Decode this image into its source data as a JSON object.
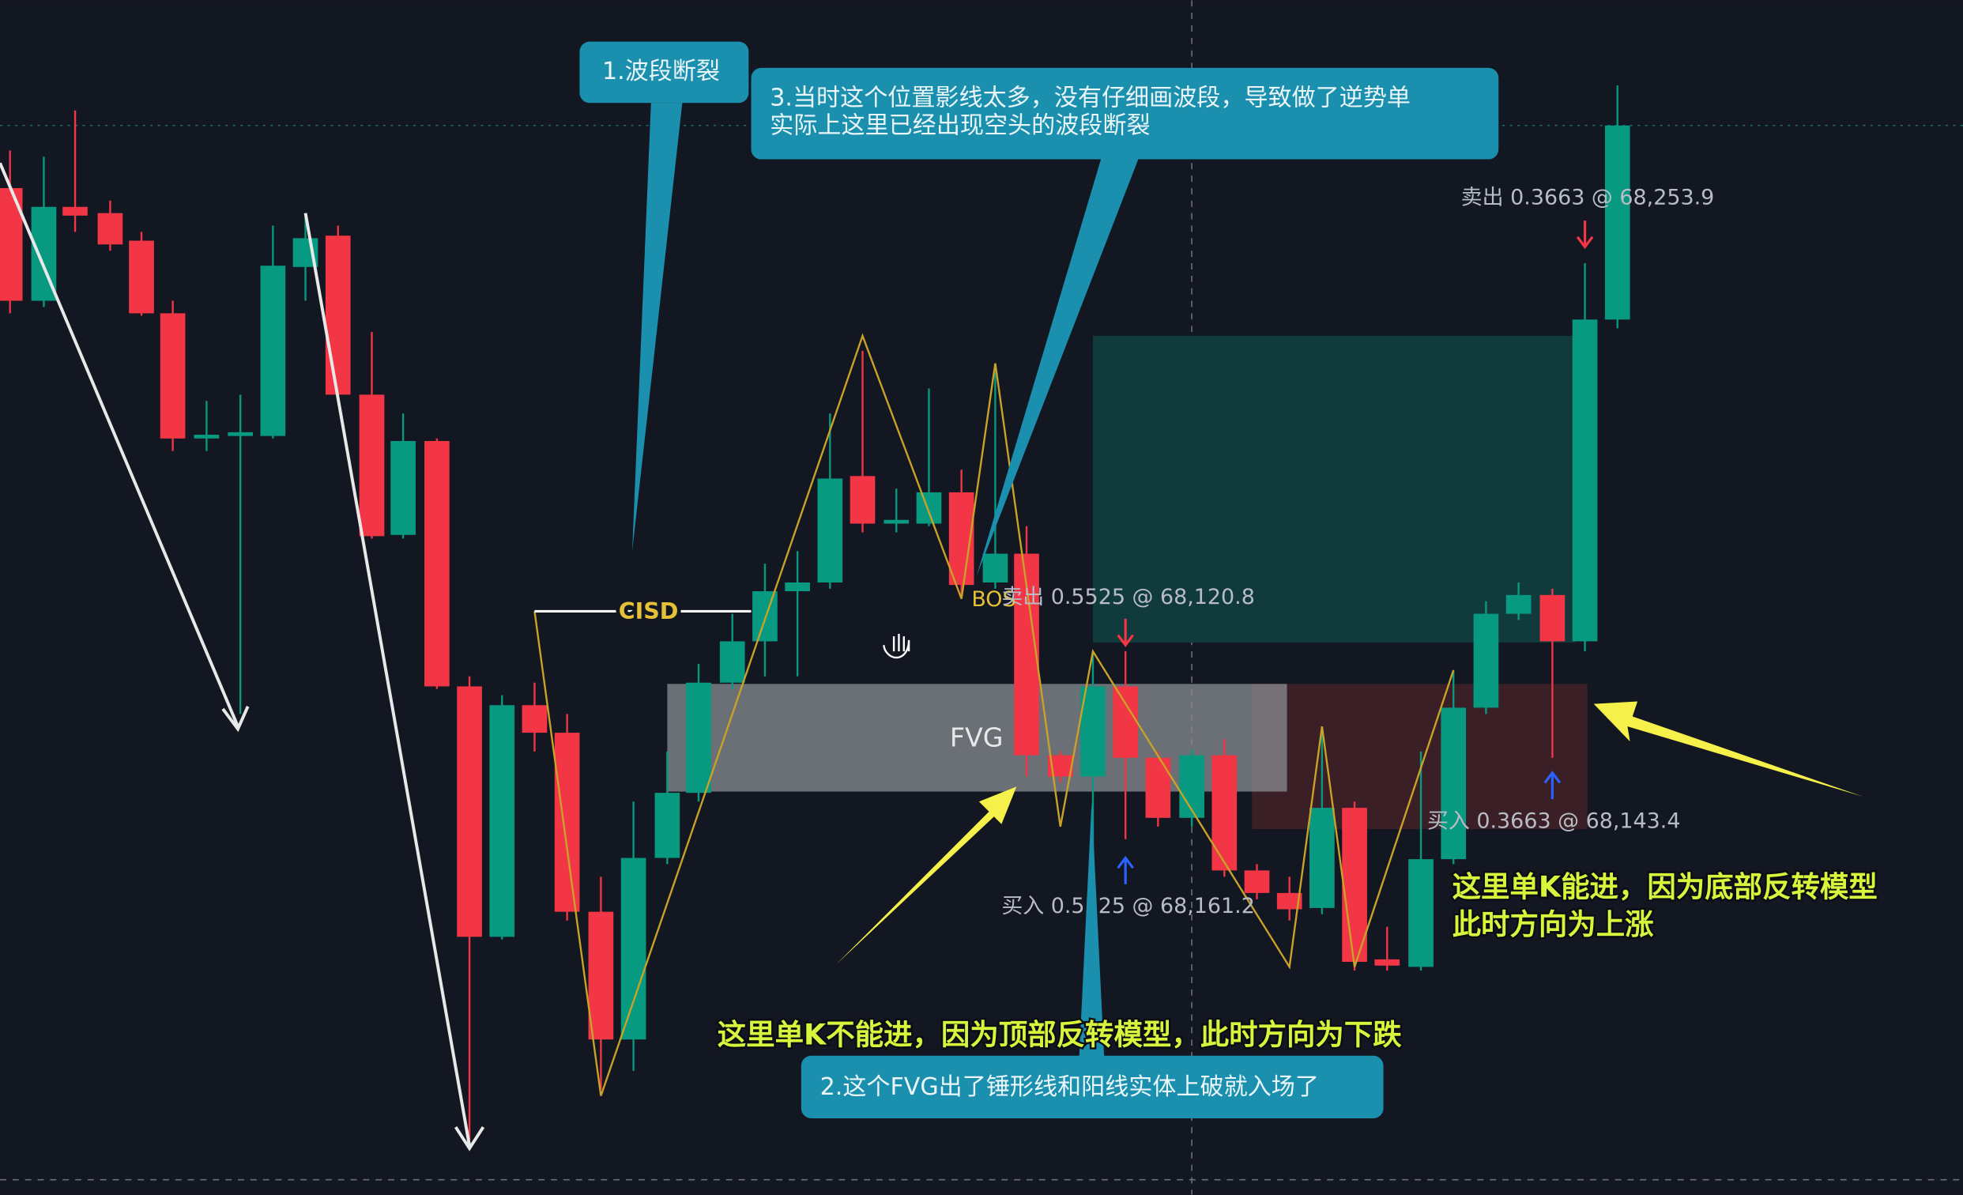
{
  "callouts": {
    "c1": "1.波段断裂",
    "c3": [
      "3.当时这个位置影线太多，没有仔细画波段，导致做了逆势单",
      "实际上这里已经出现空头的波段断裂"
    ],
    "c2": "2.这个FVG出了锤形线和阳线实体上破就入场了"
  },
  "labels": {
    "cisd": "CISD",
    "bos": "BOS",
    "fvg": "FVG"
  },
  "trades": [
    "卖出 0.3663 @ 68,253.9",
    "卖出 0.5525 @ 68,120.8",
    "买入 0.3663 @ 68,143.4",
    "买入 0.5525 @ 68,161.2"
  ],
  "notes": {
    "bottom": "这里单K不能进，因为顶部反转模型，此时方向为下跌",
    "right": [
      "这里单K能进，因为底部反转模型",
      "此时方向为上涨"
    ]
  }
}
